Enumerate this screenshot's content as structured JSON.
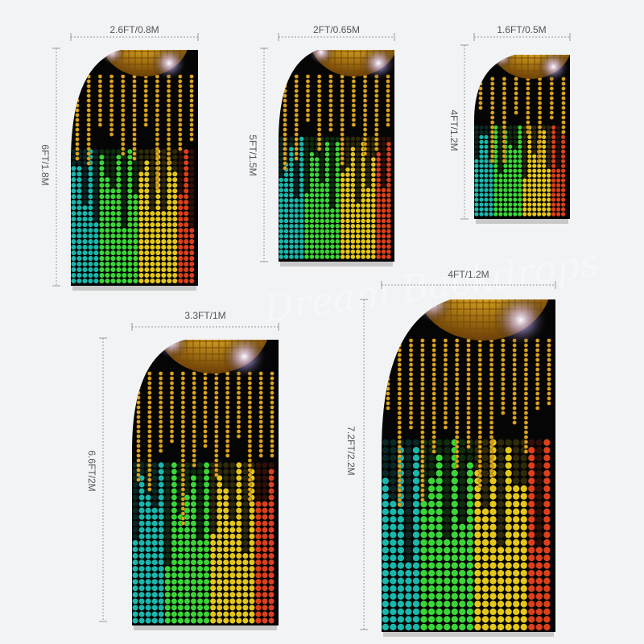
{
  "watermark": "Dream Backdrops",
  "backdrops": [
    {
      "id": "a",
      "width_label": "2.6FT/0.8M",
      "height_label": "6FT/1.8M"
    },
    {
      "id": "b",
      "width_label": "2FT/0.65M",
      "height_label": "5FT/1.5M"
    },
    {
      "id": "c",
      "width_label": "1.6FT/0.5M",
      "height_label": "4FT/1.2M"
    },
    {
      "id": "d",
      "width_label": "3.3FT/1M",
      "height_label": "6.6FT/2M"
    },
    {
      "id": "e",
      "width_label": "4FT/1.2M",
      "height_label": "7.2FT/2.2M"
    }
  ],
  "colors": {
    "background": "#f2f3f5",
    "panel": "#050505",
    "gold": "#d9a520",
    "eq_low": "#19c2b5",
    "eq_mid": "#3de23a",
    "eq_high": "#f0d21a",
    "eq_peak": "#e8421c",
    "frame": "#c8c8c8"
  }
}
